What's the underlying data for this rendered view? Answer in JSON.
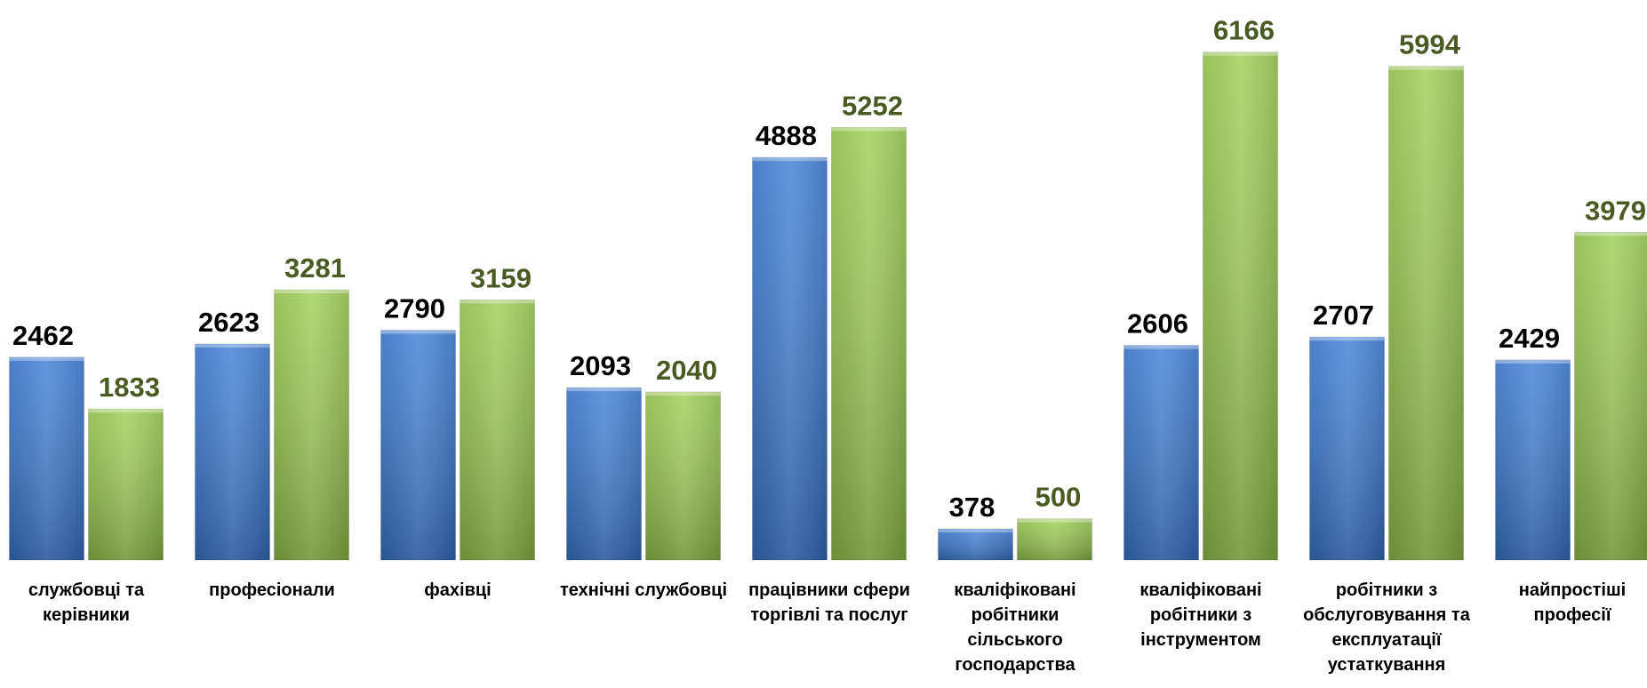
{
  "chart_data": {
    "type": "bar",
    "categories": [
      "службовці та керівники",
      "професіонали",
      "фахівці",
      "технічні службовці",
      "працівники сфери торгівлі та послуг",
      "кваліфіковані робітники сільського господарства",
      "кваліфіковані робітники з інструментом",
      "робітники з обслуговування та експлуатації устаткування",
      "найпростіші професії"
    ],
    "series": [
      {
        "color": "#3a7bd5",
        "label_color": "#000000",
        "values": [
          2462,
          2623,
          2790,
          2093,
          4888,
          378,
          2606,
          2707,
          2429
        ]
      },
      {
        "color": "#9acd4f",
        "label_color": "#4a5a23",
        "values": [
          1833,
          3281,
          3159,
          2040,
          5252,
          500,
          6166,
          5994,
          3979
        ]
      }
    ],
    "ylim": [
      0,
      6400
    ]
  }
}
